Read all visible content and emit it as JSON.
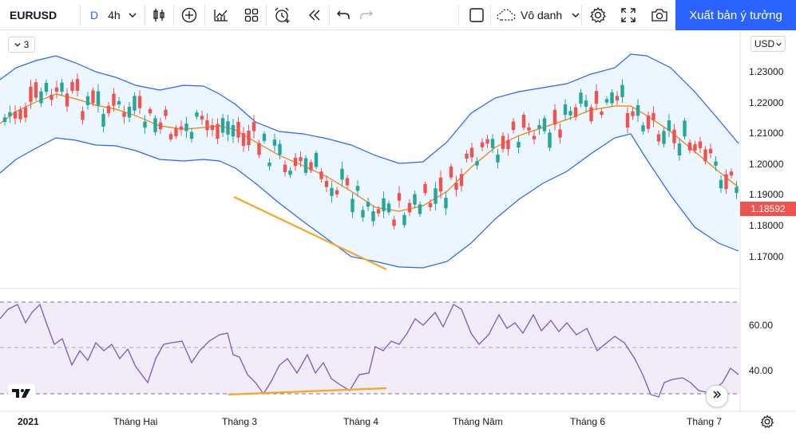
{
  "toolbar": {
    "symbol": "EURUSD",
    "interval_unit": "D",
    "interval": "4h",
    "layout_name": "Vô danh",
    "publish_label": "Xuất bản ý tưởng"
  },
  "chart": {
    "indicator_count": "3",
    "currency": "USD",
    "last_price": "1.18592",
    "price_ticks": [
      "1.23000",
      "1.22000",
      "1.21000",
      "1.20000",
      "1.19000",
      "1.18000",
      "1.17000"
    ],
    "rsi_ticks": [
      "60.00",
      "40.00"
    ],
    "time_labels": [
      "2021",
      "Tháng Hai",
      "Tháng 3",
      "Tháng 4",
      "Tháng Năm",
      "Tháng 6",
      "Tháng 7"
    ]
  },
  "colors": {
    "up": "#26a69a",
    "down": "#ef5350",
    "band": "#2962ff",
    "basis": "#f57c00",
    "trendline": "#f5a623",
    "rsi_line": "#7e57c2",
    "accent": "#2962ff"
  },
  "icons": [
    "chevron-down-icon",
    "bar-style-icon",
    "add-indicator-icon",
    "indicators-icon",
    "templates-icon",
    "alert-icon",
    "replay-icon",
    "undo-icon",
    "redo-icon",
    "fullscreen-icon",
    "snapshot-icon",
    "gear-icon"
  ]
}
